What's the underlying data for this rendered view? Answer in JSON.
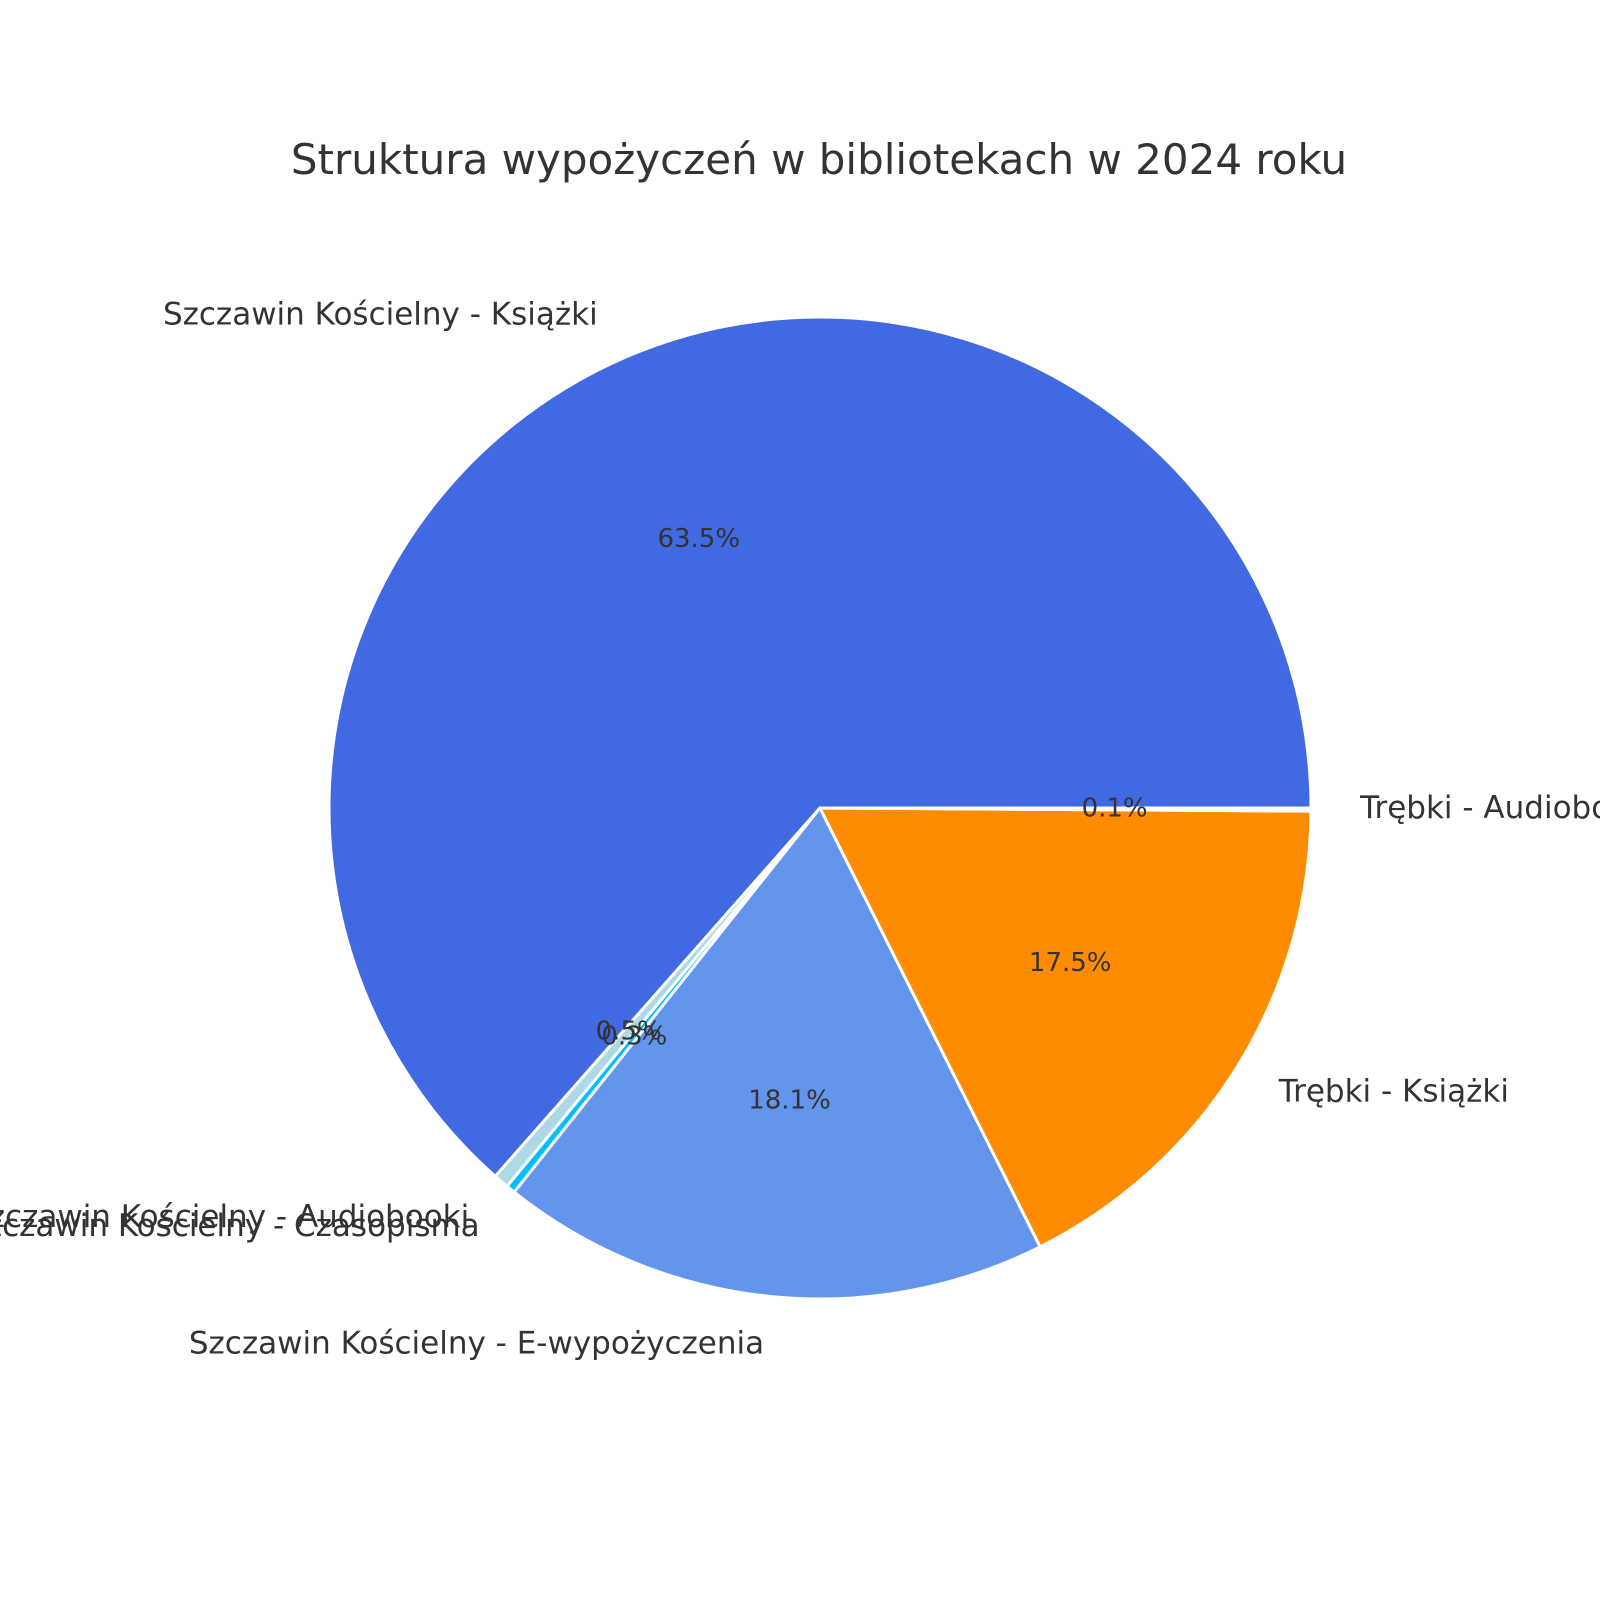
{
  "chart_data": {
    "type": "pie",
    "title": "Struktura wypożyczeń w bibliotekach w 2024 roku",
    "start_angle_deg": 0,
    "direction": "counterclockwise",
    "slices": [
      {
        "label": "Szczawin Kościelny - Książki",
        "percent": 63.5,
        "pct_label": "63.5%",
        "color": "#4169E1"
      },
      {
        "label": "Szczawin Kościelny - Audiobooki",
        "percent": 0.5,
        "pct_label": "0.5%",
        "color": "#ADD8E6"
      },
      {
        "label": "Szczawin Kościelny - Czasopisma",
        "percent": 0.3,
        "pct_label": "0.3%",
        "color": "#00BFFF"
      },
      {
        "label": "Szczawin Kościelny - E-wypożyczenia",
        "percent": 18.1,
        "pct_label": "18.1%",
        "color": "#6495ED"
      },
      {
        "label": "Trębki - Książki",
        "percent": 17.5,
        "pct_label": "17.5%",
        "color": "#FF8C00"
      },
      {
        "label": "Trębki - Audiobooki",
        "percent": 0.1,
        "pct_label": "0.1%",
        "color": "#FFA07A"
      }
    ]
  }
}
